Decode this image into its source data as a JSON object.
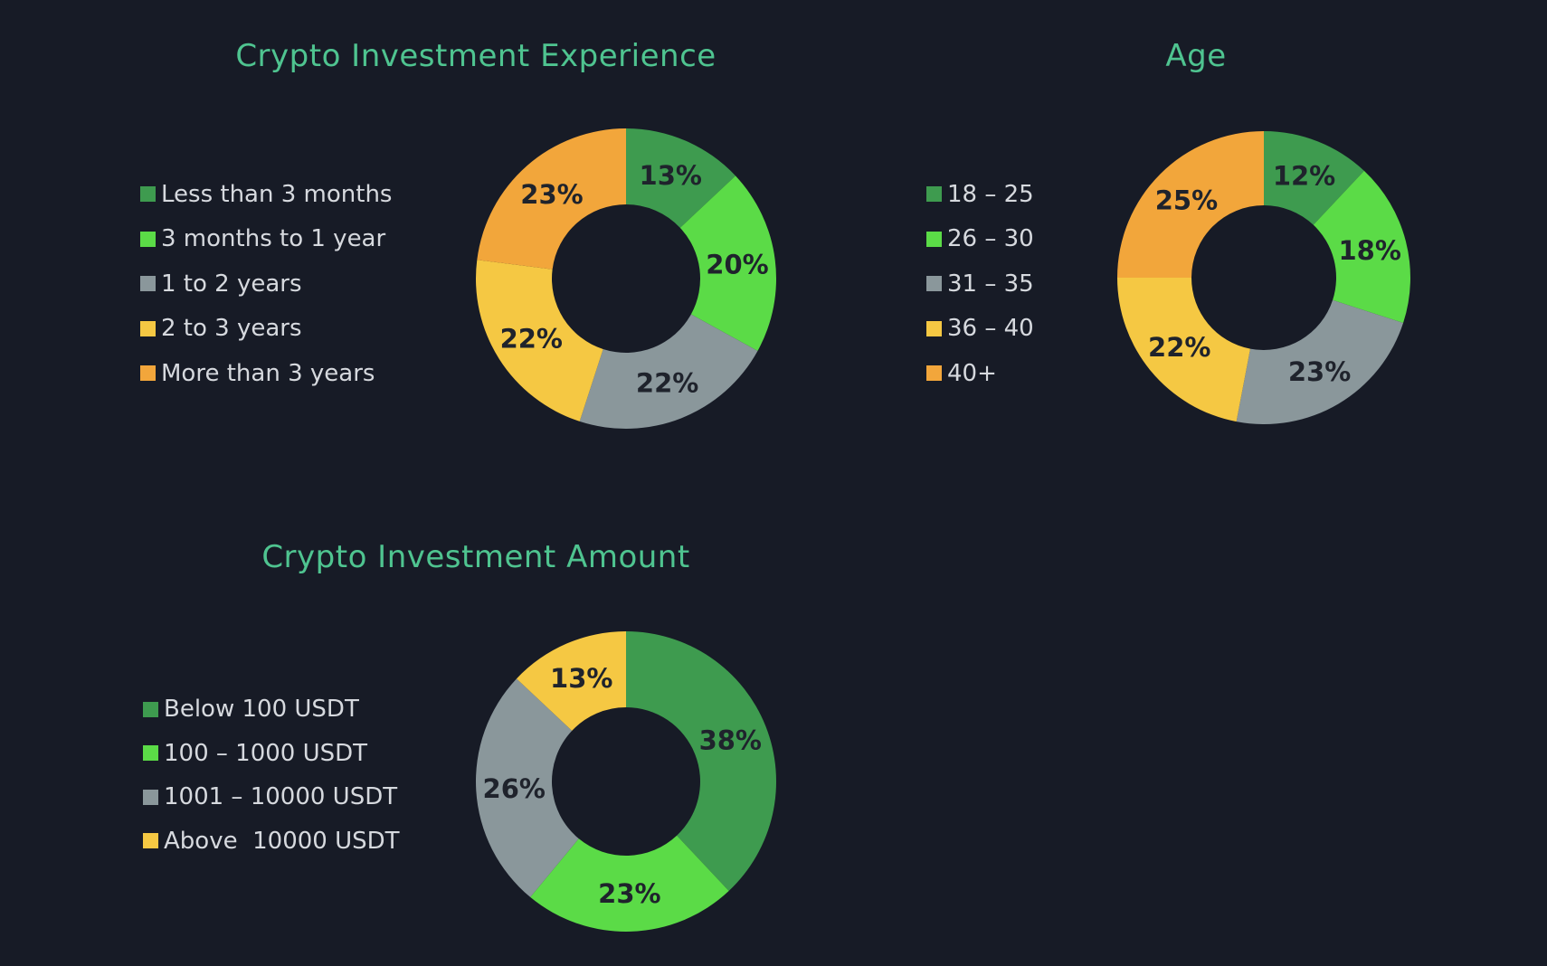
{
  "chart_data": [
    {
      "type": "pie",
      "title": "Crypto Investment Experience",
      "categories": [
        "Less than 3 months",
        "3 months to 1 year",
        "1 to 2 years",
        "2 to 3 years",
        "More than 3 years"
      ],
      "values": [
        13,
        20,
        22,
        22,
        23
      ],
      "value_labels": [
        "13%",
        "20%",
        "22%",
        "22%",
        "23%"
      ],
      "colors": [
        "#3e9b4f",
        "#5bdb47",
        "#8a979b",
        "#f5c843",
        "#f2a63b"
      ],
      "legend_position": "left",
      "style": "donut"
    },
    {
      "type": "pie",
      "title": "Age",
      "categories": [
        "18 – 25",
        "26 – 30",
        "31 – 35",
        "36 – 40",
        "40+"
      ],
      "values": [
        12,
        18,
        23,
        22,
        25
      ],
      "value_labels": [
        "12%",
        "18%",
        "23%",
        "22%",
        "25%"
      ],
      "colors": [
        "#3e9b4f",
        "#5bdb47",
        "#8a979b",
        "#f5c843",
        "#f2a63b"
      ],
      "legend_position": "left",
      "style": "donut"
    },
    {
      "type": "pie",
      "title": "Crypto Investment Amount",
      "categories": [
        "Below 100 USDT",
        "100 – 1000 USDT",
        "1001 – 10000 USDT",
        "Above  10000 USDT"
      ],
      "values": [
        38,
        23,
        26,
        13
      ],
      "value_labels": [
        "38%",
        "23%",
        "26%",
        "13%"
      ],
      "colors": [
        "#3e9b4f",
        "#5bdb47",
        "#8a979b",
        "#f5c843"
      ],
      "legend_position": "left",
      "style": "donut"
    }
  ]
}
